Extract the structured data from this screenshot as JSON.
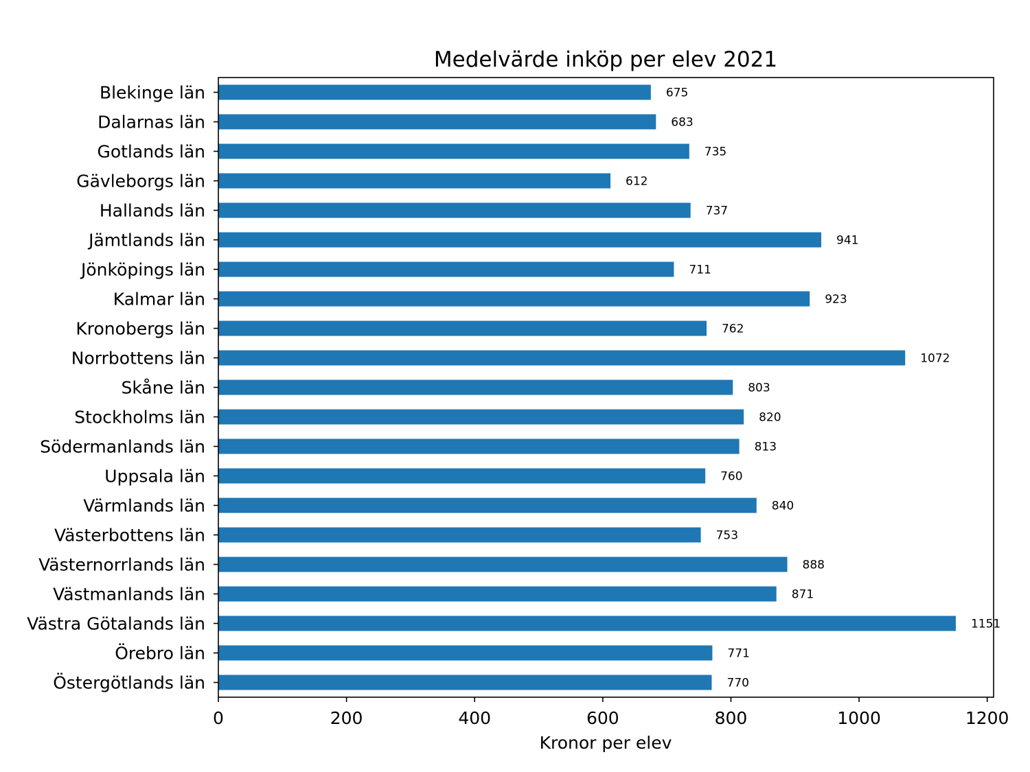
{
  "chart_data": {
    "type": "bar",
    "orientation": "horizontal",
    "title": "Medelvärde inköp per elev 2021",
    "xlabel": "Kronor per elev",
    "ylabel": "",
    "xlim": [
      0,
      1210
    ],
    "xticks": [
      0,
      200,
      400,
      600,
      800,
      1000,
      1200
    ],
    "grid": false,
    "bar_color": "#1f77b4",
    "categories": [
      "Blekinge län",
      "Dalarnas län",
      "Gotlands län",
      "Gävleborgs län",
      "Hallands län",
      "Jämtlands län",
      "Jönköpings län",
      "Kalmar län",
      "Kronobergs län",
      "Norrbottens län",
      "Skåne län",
      "Stockholms län",
      "Södermanlands län",
      "Uppsala län",
      "Värmlands län",
      "Västerbottens län",
      "Västernorrlands län",
      "Västmanlands län",
      "Västra Götalands län",
      "Örebro län",
      "Östergötlands län"
    ],
    "values": [
      675,
      683,
      735,
      612,
      737,
      941,
      711,
      923,
      762,
      1072,
      803,
      820,
      813,
      760,
      840,
      753,
      888,
      871,
      1151,
      771,
      770
    ],
    "value_labels": [
      "675",
      "683",
      "735",
      "612",
      "737",
      "941",
      "711",
      "923",
      "762",
      "1072",
      "803",
      "820",
      "813",
      "760",
      "840",
      "753",
      "888",
      "871",
      "1151",
      "771",
      "770"
    ]
  }
}
